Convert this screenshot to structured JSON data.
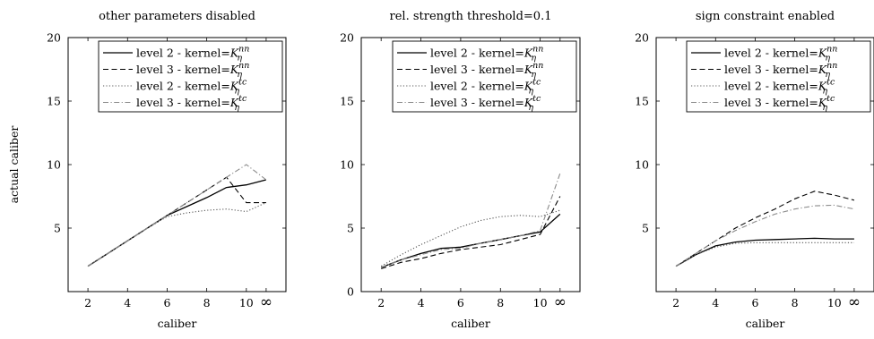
{
  "chart_data": [
    {
      "type": "line",
      "title": "other parameters disabled",
      "xlabel": "caliber",
      "ylabel": "actual caliber",
      "x_ticks": [
        "2",
        "4",
        "6",
        "8",
        "10",
        "∞"
      ],
      "y_ticks": [
        "5",
        "10",
        "15",
        "20"
      ],
      "ylim": [
        0,
        20
      ],
      "legend_position": "top-right",
      "series": [
        {
          "name": "level 2 - kernel=K_η^nn",
          "style": "solid",
          "color": "#000000",
          "x": [
            "2",
            "3",
            "4",
            "5",
            "6",
            "7",
            "8",
            "9",
            "10",
            "∞"
          ],
          "y": [
            2,
            3,
            4,
            5,
            6,
            6.7,
            7.4,
            8.2,
            8.4,
            8.8
          ]
        },
        {
          "name": "level 3 - kernel=K_η^nn",
          "style": "dashed",
          "color": "#000000",
          "x": [
            "2",
            "3",
            "4",
            "5",
            "6",
            "7",
            "8",
            "9",
            "10",
            "∞"
          ],
          "y": [
            2,
            3,
            4,
            5,
            6,
            7,
            8,
            9,
            7.0,
            7.0
          ]
        },
        {
          "name": "level 2 - kernel=K_η^tc",
          "style": "dotted",
          "color": "#555555",
          "x": [
            "2",
            "3",
            "4",
            "5",
            "6",
            "7",
            "8",
            "9",
            "10",
            "∞"
          ],
          "y": [
            2,
            3,
            4,
            5,
            5.9,
            6.2,
            6.4,
            6.5,
            6.3,
            7.0
          ]
        },
        {
          "name": "level 3 - kernel=K_η^tc",
          "style": "dashdot",
          "color": "#8a8a8a",
          "x": [
            "2",
            "3",
            "4",
            "5",
            "6",
            "7",
            "8",
            "9",
            "10",
            "∞"
          ],
          "y": [
            2,
            3,
            4,
            5,
            6,
            7,
            8,
            9,
            10,
            8.8
          ]
        }
      ]
    },
    {
      "type": "line",
      "title": "rel. strength threshold=0.1",
      "xlabel": "caliber",
      "ylabel": "",
      "x_ticks": [
        "2",
        "4",
        "6",
        "8",
        "10",
        "∞"
      ],
      "y_ticks": [
        "0",
        "5",
        "10",
        "15",
        "20"
      ],
      "ylim": [
        0,
        20
      ],
      "legend_position": "top-right",
      "series": [
        {
          "name": "level 2 - kernel=K_η^nn",
          "style": "solid",
          "color": "#000000",
          "x": [
            "2",
            "3",
            "4",
            "5",
            "6",
            "7",
            "8",
            "9",
            "10",
            "∞"
          ],
          "y": [
            1.9,
            2.5,
            3.0,
            3.4,
            3.5,
            3.8,
            4.1,
            4.4,
            4.7,
            6.1
          ]
        },
        {
          "name": "level 3 - kernel=K_η^nn",
          "style": "dashed",
          "color": "#000000",
          "x": [
            "2",
            "3",
            "4",
            "5",
            "6",
            "7",
            "8",
            "9",
            "10",
            "∞"
          ],
          "y": [
            1.8,
            2.3,
            2.6,
            3.0,
            3.3,
            3.5,
            3.7,
            4.1,
            4.5,
            7.5
          ]
        },
        {
          "name": "level 2 - kernel=K_η^tc",
          "style": "dotted",
          "color": "#555555",
          "x": [
            "2",
            "3",
            "4",
            "5",
            "6",
            "7",
            "8",
            "9",
            "10",
            "∞"
          ],
          "y": [
            2.0,
            2.9,
            3.7,
            4.4,
            5.1,
            5.6,
            5.9,
            6.0,
            5.9,
            6.4
          ]
        },
        {
          "name": "level 3 - kernel=K_η^tc",
          "style": "dashdot",
          "color": "#8a8a8a",
          "x": [
            "2",
            "3",
            "4",
            "5",
            "6",
            "7",
            "8",
            "9",
            "10",
            "∞"
          ],
          "y": [
            1.9,
            2.5,
            2.9,
            3.3,
            3.4,
            3.8,
            4.1,
            4.4,
            4.8,
            9.3
          ]
        }
      ]
    },
    {
      "type": "line",
      "title": "sign constraint enabled",
      "xlabel": "caliber",
      "ylabel": "",
      "x_ticks": [
        "2",
        "4",
        "6",
        "8",
        "10",
        "∞"
      ],
      "y_ticks": [
        "5",
        "10",
        "15",
        "20"
      ],
      "ylim": [
        0,
        20
      ],
      "legend_position": "top-right",
      "series": [
        {
          "name": "level 2 - kernel=K_η^nn",
          "style": "solid",
          "color": "#000000",
          "x": [
            "2",
            "3",
            "4",
            "5",
            "6",
            "7",
            "8",
            "9",
            "10",
            "∞"
          ],
          "y": [
            2,
            2.9,
            3.6,
            3.9,
            4.05,
            4.1,
            4.15,
            4.2,
            4.15,
            4.15
          ]
        },
        {
          "name": "level 3 - kernel=K_η^nn",
          "style": "dashed",
          "color": "#000000",
          "x": [
            "2",
            "3",
            "4",
            "5",
            "6",
            "7",
            "8",
            "9",
            "10",
            "∞"
          ],
          "y": [
            2,
            3,
            4,
            5,
            5.8,
            6.5,
            7.3,
            7.9,
            7.6,
            7.2
          ]
        },
        {
          "name": "level 2 - kernel=K_η^tc",
          "style": "dotted",
          "color": "#555555",
          "x": [
            "2",
            "3",
            "4",
            "5",
            "6",
            "7",
            "8",
            "9",
            "10",
            "∞"
          ],
          "y": [
            2,
            2.9,
            3.5,
            3.8,
            3.85,
            3.85,
            3.85,
            3.85,
            3.85,
            3.85
          ]
        },
        {
          "name": "level 3 - kernel=K_η^tc",
          "style": "dashdot",
          "color": "#8a8a8a",
          "x": [
            "2",
            "3",
            "4",
            "5",
            "6",
            "7",
            "8",
            "9",
            "10",
            "∞"
          ],
          "y": [
            2,
            3,
            4,
            4.8,
            5.5,
            6.1,
            6.5,
            6.75,
            6.8,
            6.5
          ]
        }
      ]
    }
  ]
}
